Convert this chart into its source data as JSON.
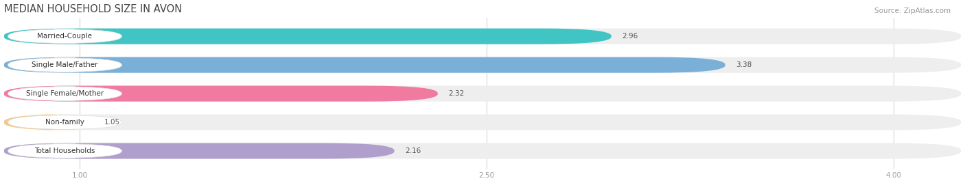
{
  "title": "MEDIAN HOUSEHOLD SIZE IN AVON",
  "source": "Source: ZipAtlas.com",
  "categories": [
    "Married-Couple",
    "Single Male/Father",
    "Single Female/Mother",
    "Non-family",
    "Total Households"
  ],
  "values": [
    2.96,
    3.38,
    2.32,
    1.05,
    2.16
  ],
  "bar_colors": [
    "#40c4c4",
    "#7ab0d8",
    "#f07aa0",
    "#f5c98a",
    "#b09fcc"
  ],
  "xlim_min": 0.72,
  "xlim_max": 4.25,
  "xticks": [
    1.0,
    2.5,
    4.0
  ],
  "label_fontsize": 7.5,
  "value_fontsize": 7.5,
  "title_fontsize": 10.5,
  "source_fontsize": 7.5,
  "background_color": "#ffffff",
  "bar_height": 0.55,
  "bar_bg_color": "#eeeeee",
  "label_box_color": "#ffffff",
  "grid_color": "#cccccc",
  "tick_color": "#999999",
  "value_color": "#555555",
  "title_color": "#444444"
}
